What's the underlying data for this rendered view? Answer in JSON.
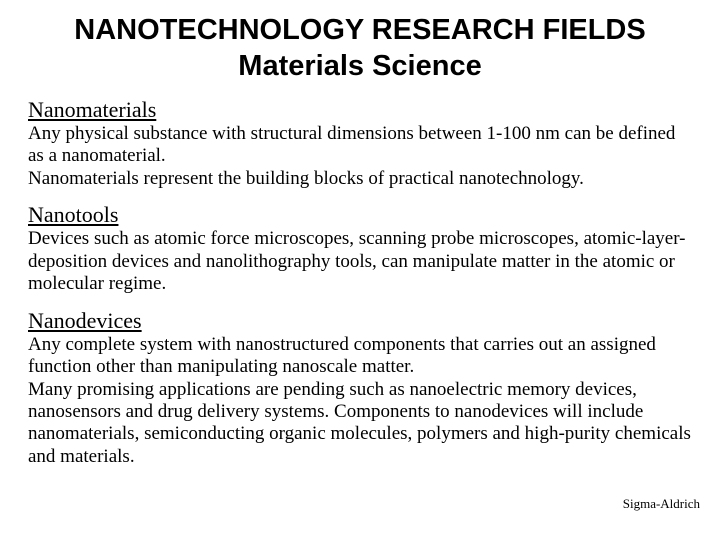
{
  "title_line1": "NANOTECHNOLOGY RESEARCH FIELDS",
  "title_line2": "Materials Science",
  "sections": {
    "nanomaterials": {
      "heading": "Nanomaterials",
      "body": "Any physical substance with structural dimensions between 1-100 nm can be defined as a nanomaterial.\nNanomaterials represent the building blocks of practical nanotechnology."
    },
    "nanotools": {
      "heading": "Nanotools",
      "body": "Devices such as atomic force microscopes, scanning probe microscopes, atomic-layer-deposition devices and nanolithography tools, can manipulate matter in the atomic or molecular regime."
    },
    "nanodevices": {
      "heading": "Nanodevices",
      "body": "Any complete system with nanostructured components that carries out an assigned function other than manipulating nanoscale matter.\nMany promising applications are pending such as nanoelectric memory devices, nanosensors and drug delivery systems. Components to nanodevices will include nanomaterials, semiconducting organic molecules, polymers and high-purity chemicals and materials."
    }
  },
  "attribution": "Sigma-Aldrich",
  "colors": {
    "background": "#ffffff",
    "text": "#000000"
  },
  "fonts": {
    "title_family": "Arial",
    "body_family": "Times New Roman",
    "title_size_pt": 22,
    "heading_size_pt": 17,
    "body_size_pt": 14
  }
}
